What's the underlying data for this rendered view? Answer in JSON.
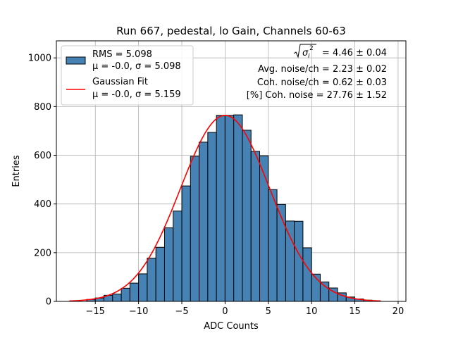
{
  "chart_data": {
    "type": "bar",
    "title": "Run 667, pedestal, lo Gain, Channels 60-63",
    "xlabel": "ADC Counts",
    "ylabel": "Entries",
    "xlim": [
      -19.5,
      20.9
    ],
    "ylim": [
      0,
      1070
    ],
    "xticks": [
      -15,
      -10,
      -5,
      0,
      5,
      10,
      15,
      20
    ],
    "yticks": [
      0,
      200,
      400,
      600,
      800,
      1000
    ],
    "grid": true,
    "legend_position": "top-left",
    "bin_width": 1,
    "bins": [
      {
        "x": -15.5,
        "v": 8
      },
      {
        "x": -14.5,
        "v": 14
      },
      {
        "x": -13.5,
        "v": 25
      },
      {
        "x": -12.5,
        "v": 30
      },
      {
        "x": -11.5,
        "v": 54
      },
      {
        "x": -10.5,
        "v": 75
      },
      {
        "x": -9.5,
        "v": 113
      },
      {
        "x": -8.5,
        "v": 178
      },
      {
        "x": -7.5,
        "v": 222
      },
      {
        "x": -6.5,
        "v": 302
      },
      {
        "x": -5.5,
        "v": 371
      },
      {
        "x": -4.5,
        "v": 474
      },
      {
        "x": -3.5,
        "v": 596
      },
      {
        "x": -2.5,
        "v": 654
      },
      {
        "x": -1.5,
        "v": 694
      },
      {
        "x": -0.5,
        "v": 764
      },
      {
        "x": 0.5,
        "v": 764
      },
      {
        "x": 1.5,
        "v": 766
      },
      {
        "x": 2.5,
        "v": 703
      },
      {
        "x": 3.5,
        "v": 616
      },
      {
        "x": 4.5,
        "v": 598
      },
      {
        "x": 5.5,
        "v": 459
      },
      {
        "x": 6.5,
        "v": 398
      },
      {
        "x": 7.5,
        "v": 330
      },
      {
        "x": 8.5,
        "v": 329
      },
      {
        "x": 9.5,
        "v": 220
      },
      {
        "x": 10.5,
        "v": 112
      },
      {
        "x": 11.5,
        "v": 80
      },
      {
        "x": 12.5,
        "v": 55
      },
      {
        "x": 13.5,
        "v": 35
      },
      {
        "x": 14.5,
        "v": 18
      },
      {
        "x": 15.5,
        "v": 10
      },
      {
        "x": 16.5,
        "v": 5
      }
    ],
    "fit": {
      "mu": -0.0,
      "sigma": 5.159,
      "amplitude": 764,
      "x_range": [
        -18,
        18
      ]
    },
    "colors": {
      "bars": "#4682b4",
      "bar_edge": "#000000",
      "fit": "#ff0000",
      "grid": "#b0b0b0"
    },
    "legend": [
      {
        "line1": "RMS = 5.098",
        "line2": "μ = -0.0, σ = 5.098"
      },
      {
        "line1": "Gaussian Fit",
        "line2": "μ = -0.0, σ = 5.159"
      }
    ],
    "annotations": {
      "sigma_value": "= 4.46 ± 0.04",
      "avg_noise": "Avg. noise/ch = 2.23 ± 0.02",
      "coh_noise": "Coh. noise/ch = 0.62 ± 0.03",
      "pct_coh_noise": "[%] Coh. noise = 27.76 ± 1.52"
    }
  }
}
